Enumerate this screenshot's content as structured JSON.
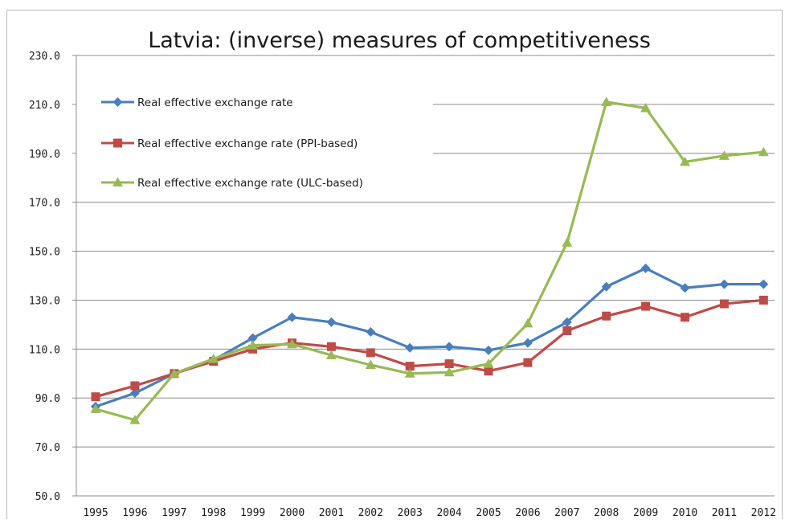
{
  "chart_data": {
    "type": "line",
    "title": "Latvia: (inverse) measures of competitiveness",
    "xlabel": "",
    "ylabel": "",
    "ylim": [
      50,
      230
    ],
    "y_ticks": [
      "50.0",
      "70.0",
      "90.0",
      "110.0",
      "130.0",
      "150.0",
      "170.0",
      "190.0",
      "210.0",
      "230.0"
    ],
    "categories": [
      "1995",
      "1996",
      "1997",
      "1998",
      "1999",
      "2000",
      "2001",
      "2002",
      "2003",
      "2004",
      "2005",
      "2006",
      "2007",
      "2008",
      "2009",
      "2010",
      "2011",
      "2012"
    ],
    "grid": true,
    "legend_position": "top-left",
    "series": [
      {
        "name": "Real effective exchange rate",
        "color": "#4a7ebb",
        "marker": "diamond",
        "values": [
          86.5,
          92,
          100,
          105.5,
          114.5,
          123,
          121,
          117,
          110.5,
          111,
          109.5,
          112.5,
          121,
          135.5,
          143,
          135,
          136.5,
          136.5
        ]
      },
      {
        "name": "Real effective exchange rate (PPI-based)",
        "color": "#be4b48",
        "marker": "square",
        "values": [
          90.5,
          95,
          100,
          105,
          110,
          112.5,
          111,
          108.5,
          103,
          104,
          101,
          104.5,
          117.5,
          123.5,
          127.5,
          123,
          128.5,
          130
        ]
      },
      {
        "name": "Real effective exchange rate (ULC-based)",
        "color": "#98b954",
        "marker": "triangle",
        "values": [
          85.5,
          81,
          100,
          106,
          111.5,
          112,
          107.5,
          103.5,
          100,
          100.5,
          104,
          120.5,
          153.5,
          211,
          208.5,
          186.5,
          189,
          190.5
        ]
      }
    ]
  }
}
